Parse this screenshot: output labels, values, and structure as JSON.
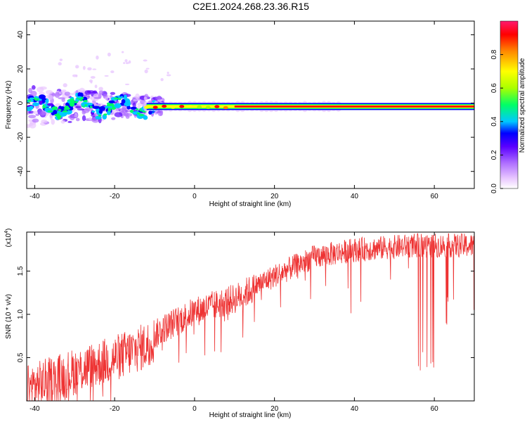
{
  "title": "C2E1.2024.268.23.36.R15",
  "chart_data": [
    {
      "type": "heatmap",
      "xlabel": "Height of straight line (km)",
      "ylabel": "Frequency (Hz)",
      "xlim": [
        -42,
        70
      ],
      "ylim": [
        -50,
        48
      ],
      "xticks": [
        "-40",
        "-20",
        "0",
        "20",
        "40",
        "60"
      ],
      "yticks": [
        "-40",
        "-20",
        "0",
        "20",
        "40"
      ],
      "colorbar": {
        "label": "Normalized spectral amplitude",
        "range": [
          0,
          1
        ],
        "ticks": [
          "0.0",
          "0.2",
          "0.4",
          "0.6",
          "0.8"
        ]
      },
      "ridge": {
        "frequency_hz": -2,
        "x_start_km": -12,
        "x_end_km": 70,
        "amplitude": 1.0
      },
      "scatter_region": {
        "x_range_km": [
          -42,
          -12
        ],
        "frequency_range_hz": [
          -10,
          8
        ]
      },
      "colors": [
        "#ffffff",
        "#e9c8ff",
        "#b070ff",
        "#5a00ff",
        "#0000ff",
        "#00c8ff",
        "#00ff66",
        "#aaff00",
        "#ffff00",
        "#ff8800",
        "#ff0000",
        "#ff1a6e"
      ]
    },
    {
      "type": "line",
      "xlabel": "Height of straight line (km)",
      "ylabel": "SNR (10 * v/v)",
      "scale_label": "(x10",
      "scale_exp": "4",
      "xlim": [
        -42,
        70
      ],
      "ylim": [
        0,
        1.95
      ],
      "xticks": [
        "-40",
        "-20",
        "0",
        "20",
        "40",
        "60"
      ],
      "yticks": [
        "0.5",
        "1.0",
        "1.5"
      ],
      "series": [
        {
          "color": "#ee3333",
          "trend_x": [
            -42,
            -30,
            -20,
            -12,
            -8,
            0,
            10,
            20,
            30,
            40,
            55,
            70
          ],
          "trend_y": [
            0.25,
            0.45,
            0.6,
            0.75,
            0.9,
            1.1,
            1.25,
            1.5,
            1.72,
            1.8,
            1.85,
            1.85
          ]
        }
      ]
    }
  ]
}
